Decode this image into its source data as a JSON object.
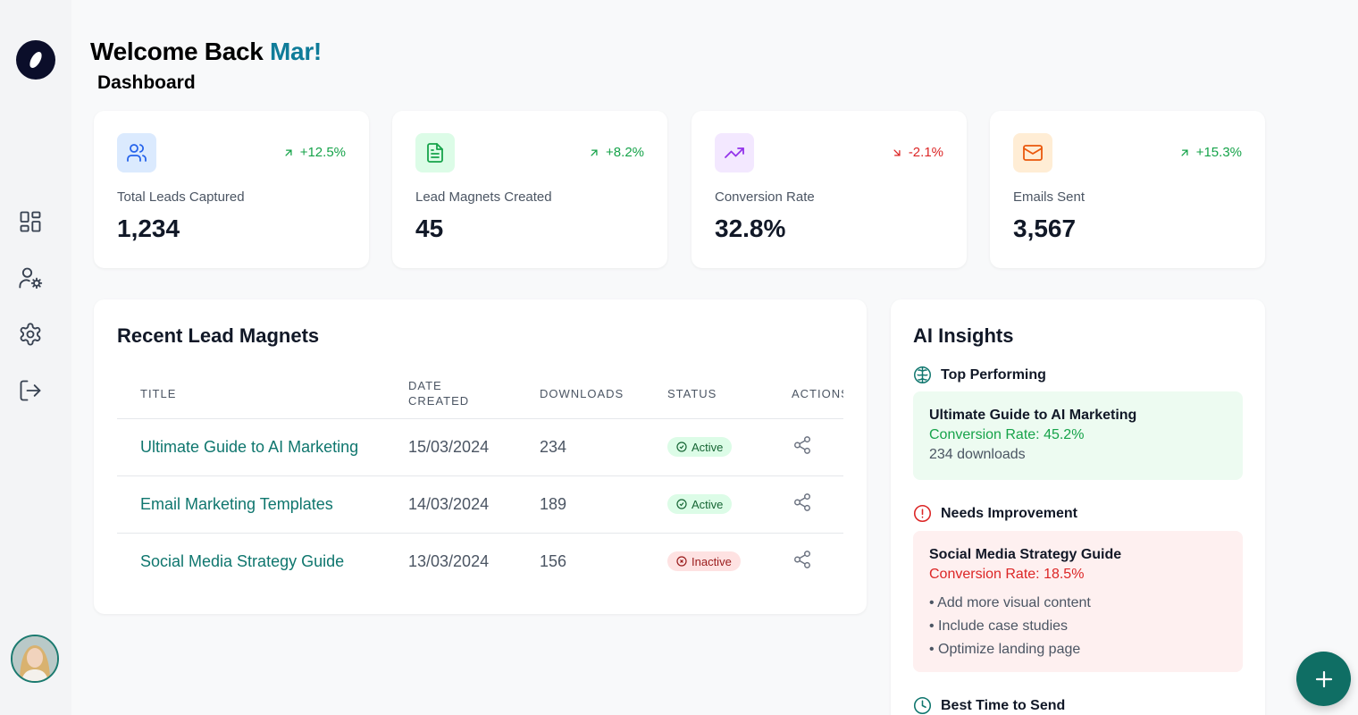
{
  "colors": {
    "brand": "#0f7c99",
    "accent": "#0f766e",
    "positive": "#16a34a",
    "negative": "#dc2626"
  },
  "sidebar": {
    "logo_icon": "logo-icon",
    "items": [
      {
        "icon": "dashboard-grid-icon"
      },
      {
        "icon": "user-settings-icon"
      },
      {
        "icon": "gear-icon"
      },
      {
        "icon": "logout-icon"
      }
    ],
    "avatar_icon": "avatar"
  },
  "header": {
    "welcome_prefix": "Welcome Back",
    "user_name": "Mar!",
    "subtitle": "Dashboard"
  },
  "stats": [
    {
      "label": "Total Leads Captured",
      "value": "1,234",
      "change": "+12.5%",
      "trend": "up",
      "icon": "users-icon"
    },
    {
      "label": "Lead Magnets Created",
      "value": "45",
      "change": "+8.2%",
      "trend": "up",
      "icon": "document-icon"
    },
    {
      "label": "Conversion Rate",
      "value": "32.8%",
      "change": "-2.1%",
      "trend": "down",
      "icon": "trending-up-icon"
    },
    {
      "label": "Emails Sent",
      "value": "3,567",
      "change": "+15.3%",
      "trend": "up",
      "icon": "mail-icon"
    }
  ],
  "recent": {
    "title": "Recent Lead Magnets",
    "columns": {
      "title": "TITLE",
      "date_line1": "DATE",
      "date_line2": "CREATED",
      "downloads": "DOWNLOADS",
      "status": "STATUS",
      "actions": "ACTIONS"
    },
    "rows": [
      {
        "title": "Ultimate Guide to AI Marketing",
        "date": "15/03/2024",
        "downloads": "234",
        "status": "Active"
      },
      {
        "title": "Email Marketing Templates",
        "date": "14/03/2024",
        "downloads": "189",
        "status": "Active"
      },
      {
        "title": "Social Media Strategy Guide",
        "date": "13/03/2024",
        "downloads": "156",
        "status": "Inactive"
      }
    ]
  },
  "ai": {
    "title": "AI Insights",
    "top": {
      "heading": "Top Performing",
      "name": "Ultimate Guide to AI Marketing",
      "rate": "Conversion Rate: 45.2%",
      "downloads": "234 downloads"
    },
    "needs": {
      "heading": "Needs Improvement",
      "name": "Social Media Strategy Guide",
      "rate": "Conversion Rate: 18.5%",
      "tips": [
        "• Add more visual content",
        "• Include case studies",
        "• Optimize landing page"
      ]
    },
    "best_time": {
      "heading": "Best Time to Send"
    }
  },
  "fab": {
    "icon": "plus-icon"
  }
}
